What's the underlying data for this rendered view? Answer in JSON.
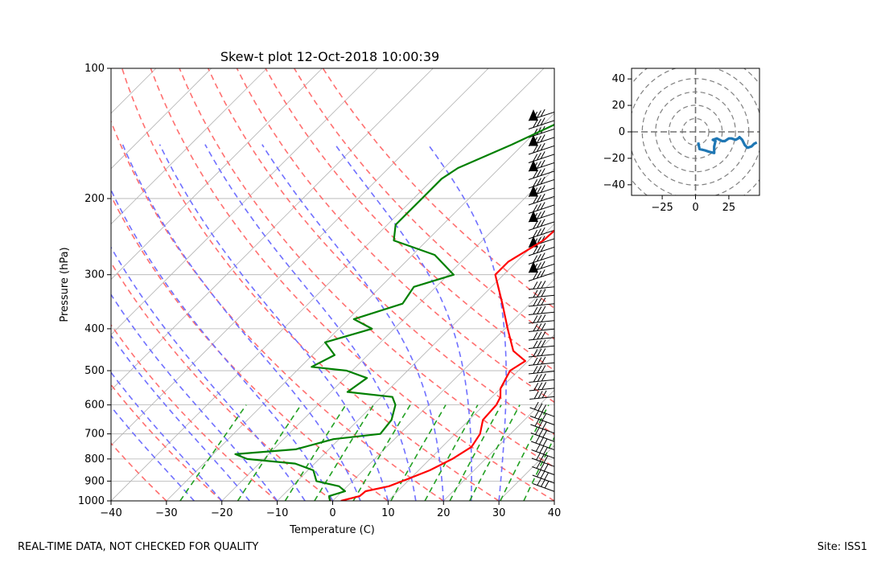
{
  "chart_data": [
    {
      "type": "line",
      "title": "Skew-t plot 12-Oct-2018 10:00:39",
      "xlabel": "Temperature (C)",
      "ylabel": "Pressure (hPa)",
      "xlim": [
        -40,
        40
      ],
      "ylim": [
        1000,
        100
      ],
      "y_scale": "log",
      "x_ticks": [
        -40,
        -30,
        -20,
        -10,
        0,
        10,
        20,
        30,
        40
      ],
      "y_ticks": [
        100,
        200,
        300,
        400,
        500,
        600,
        700,
        800,
        900,
        1000
      ],
      "grid": true,
      "colors": {
        "temperature": "#ff0000",
        "dewpoint": "#008000",
        "dry_adiabats": "#ff7070",
        "moist_adiabats": "#7070ff",
        "mixing_ratio": "#22a022",
        "isotherms": "#aaaaaa"
      },
      "series": [
        {
          "key": "temperature",
          "pressure": [
            1000,
            975,
            950,
            925,
            900,
            850,
            800,
            750,
            700,
            650,
            600,
            575,
            550,
            500,
            475,
            450,
            400,
            350,
            300,
            280,
            250,
            220,
            200,
            180,
            150,
            130,
            125
          ],
          "temperature": [
            1.5,
            4.0,
            4.2,
            7.5,
            9.0,
            12.0,
            14.0,
            15.3,
            14.5,
            12.5,
            12.2,
            11.5,
            10.0,
            8.5,
            9.5,
            5.5,
            0.5,
            -5.0,
            -11.5,
            -11.5,
            -9.0,
            -8.5,
            -7.5,
            -5.5,
            -4.0,
            -3.0,
            -3.5
          ]
        },
        {
          "key": "dewpoint",
          "pressure": [
            1000,
            975,
            950,
            925,
            900,
            850,
            820,
            800,
            780,
            760,
            720,
            700,
            650,
            600,
            575,
            560,
            520,
            500,
            490,
            460,
            430,
            400,
            380,
            350,
            320,
            300,
            270,
            250,
            230,
            200,
            180,
            170,
            150,
            130,
            125
          ],
          "temperature": [
            -0.5,
            -1.5,
            0.5,
            -1.5,
            -6.5,
            -9.0,
            -13.5,
            -23.0,
            -26.0,
            -16.0,
            -11.0,
            -3.5,
            -4.0,
            -6.0,
            -8.0,
            -17.0,
            -16.0,
            -21.0,
            -28.0,
            -26.0,
            -30.0,
            -24.0,
            -29.0,
            -23.0,
            -24.0,
            -19.0,
            -26.0,
            -36.0,
            -38.5,
            -38.5,
            -38.5,
            -37.5,
            -32.0,
            -26.5,
            -25.5
          ]
        }
      ]
    },
    {
      "type": "hodograph",
      "xlim": [
        -48,
        48
      ],
      "ylim": [
        -48,
        48
      ],
      "x_ticks": [
        -25,
        0,
        25
      ],
      "y_ticks": [
        -40,
        -20,
        0,
        20,
        40
      ],
      "rings": [
        10,
        20,
        30,
        40,
        50,
        60
      ],
      "line_color": "#1f77b4",
      "u": [
        2,
        3,
        7,
        10,
        14,
        14,
        15,
        13,
        16,
        20,
        22,
        25,
        27,
        30,
        32,
        33,
        35,
        37,
        39,
        42,
        44,
        46
      ],
      "v": [
        -8,
        -13,
        -14,
        -15,
        -16,
        -11,
        -7,
        -6,
        -5,
        -7,
        -7,
        -5,
        -5,
        -6,
        -5,
        -4,
        -6,
        -10,
        -12,
        -11,
        -9,
        -8
      ]
    }
  ],
  "footer": {
    "left": "REAL-TIME DATA, NOT CHECKED FOR QUALITY",
    "right": "Site: ISS1"
  }
}
